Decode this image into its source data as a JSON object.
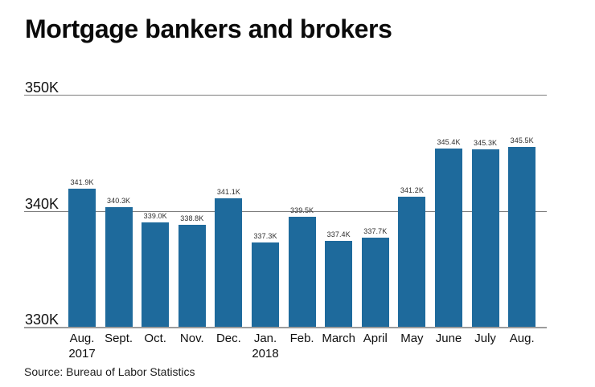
{
  "page": {
    "title": "Mortgage bankers and brokers",
    "source": "Source: Bureau of Labor Statistics"
  },
  "chart_data": {
    "type": "bar",
    "title": "Mortgage bankers and brokers",
    "categories": [
      "Aug.\n2017",
      "Sept.",
      "Oct.",
      "Nov.",
      "Dec.",
      "Jan.\n2018",
      "Feb.",
      "March",
      "April",
      "May",
      "June",
      "July",
      "Aug."
    ],
    "values": [
      341.9,
      340.3,
      339.0,
      338.8,
      341.1,
      337.3,
      339.5,
      337.4,
      337.7,
      341.2,
      345.4,
      345.3,
      345.5
    ],
    "value_labels": [
      "341.9K",
      "340.3K",
      "339.0K",
      "338.8K",
      "341.1K",
      "337.3K",
      "339.5K",
      "337.4K",
      "337.7K",
      "341.2K",
      "345.4K",
      "345.3K",
      "345.5K"
    ],
    "unit": "K",
    "ylim": [
      330,
      350
    ],
    "yticks": [
      {
        "label": "330K",
        "value": 330
      },
      {
        "label": "340K",
        "value": 340
      },
      {
        "label": "350K",
        "value": 350
      }
    ],
    "xlabel": "",
    "ylabel": "",
    "grid": true,
    "legend": false,
    "source": "Source: Bureau of Labor Statistics",
    "colors": {
      "bar": "#1e6a9c",
      "gridline": "#7d7d7d",
      "axis_line": "#9c9c9c",
      "title_text": "#0a0a0a",
      "label_text": "#2e2e2e"
    }
  }
}
